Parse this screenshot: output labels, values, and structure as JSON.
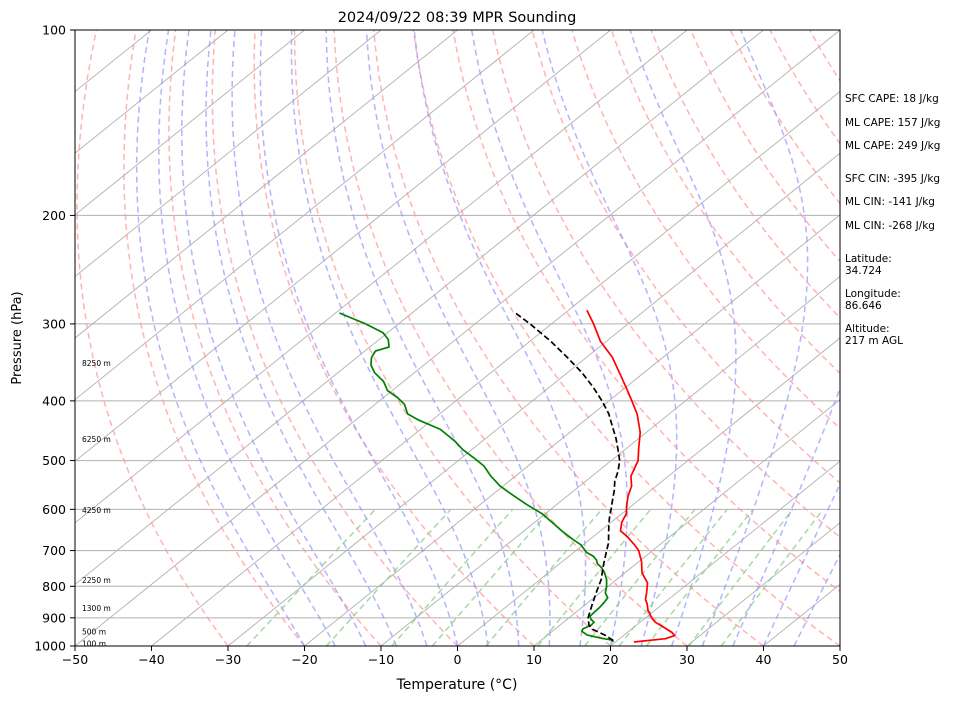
{
  "chart_data": {
    "type": "line",
    "subtype": "skew-t log-p sounding",
    "title": "2024/09/22 08:39 MPR Sounding",
    "xlabel": "Temperature (°C)",
    "ylabel": "Pressure (hPa)",
    "xlim": [
      -50,
      50
    ],
    "ylim": [
      1000,
      100
    ],
    "y_scale": "log",
    "x_ticks": [
      "−50",
      "−40",
      "−30",
      "−20",
      "−10",
      "0",
      "10",
      "20",
      "30",
      "40",
      "50"
    ],
    "x_tick_values": [
      -50,
      -40,
      -30,
      -20,
      -10,
      0,
      10,
      20,
      30,
      40,
      50
    ],
    "y_ticks": [
      "100",
      "200",
      "300",
      "400",
      "500",
      "600",
      "700",
      "800",
      "900",
      "1000"
    ],
    "y_tick_values": [
      100,
      200,
      300,
      400,
      500,
      600,
      700,
      800,
      900,
      1000
    ],
    "grid": true,
    "legend": "none",
    "colors": {
      "temperature": "#ff0000",
      "dewpoint": "#008000",
      "parcel": "#000000",
      "isotherm": "#b0b0b0",
      "dry_adiabat": "#ff9a9a",
      "moist_adiabat": "#9a9aff",
      "mixing_ratio": "#8fcf8f"
    },
    "height_labels": [
      {
        "label": "8250 m",
        "p": 347
      },
      {
        "label": "6250 m",
        "p": 461
      },
      {
        "label": "4250 m",
        "p": 601
      },
      {
        "label": "2250 m",
        "p": 781
      },
      {
        "label": "1300 m",
        "p": 867
      },
      {
        "label": "500 m",
        "p": 948
      },
      {
        "label": "100 m",
        "p": 990
      }
    ],
    "series": [
      {
        "kind": "temperature",
        "points": [
          [
            22.4,
            985
          ],
          [
            26.0,
            973
          ],
          [
            26.7,
            962
          ],
          [
            25.8,
            950
          ],
          [
            24.2,
            935
          ],
          [
            22.0,
            915
          ],
          [
            20.8,
            900
          ],
          [
            19.8,
            885
          ],
          [
            19.1,
            875
          ],
          [
            18.0,
            855
          ],
          [
            17.0,
            840
          ],
          [
            16.1,
            820
          ],
          [
            15.1,
            800
          ],
          [
            14.6,
            790
          ],
          [
            13.4,
            775
          ],
          [
            12.2,
            760
          ],
          [
            10.4,
            730
          ],
          [
            8.2,
            700
          ],
          [
            6.7,
            685
          ],
          [
            4.5,
            665
          ],
          [
            2.6,
            650
          ],
          [
            2.0,
            640
          ],
          [
            1.4,
            630
          ],
          [
            0.6,
            610
          ],
          [
            -0.8,
            590
          ],
          [
            -2.1,
            570
          ],
          [
            -3.2,
            550
          ],
          [
            -4.9,
            530
          ],
          [
            -6.5,
            500
          ],
          [
            -8.2,
            480
          ],
          [
            -10.8,
            450
          ],
          [
            -14.2,
            420
          ],
          [
            -17.0,
            400
          ],
          [
            -20.0,
            380
          ],
          [
            -23.2,
            360
          ],
          [
            -26.6,
            340
          ],
          [
            -30.8,
            320
          ],
          [
            -34.5,
            300
          ],
          [
            -37.6,
            285
          ]
        ]
      },
      {
        "kind": "dewpoint",
        "points": [
          [
            19.7,
            985
          ],
          [
            19.2,
            978
          ],
          [
            17.3,
            970
          ],
          [
            15.2,
            960
          ],
          [
            13.9,
            947
          ],
          [
            13.6,
            938
          ],
          [
            14.1,
            926
          ],
          [
            14.0,
            915
          ],
          [
            13.1,
            905
          ],
          [
            12.5,
            895
          ],
          [
            12.4,
            880
          ],
          [
            12.3,
            865
          ],
          [
            12.1,
            850
          ],
          [
            11.8,
            835
          ],
          [
            10.7,
            820
          ],
          [
            9.8,
            800
          ],
          [
            8.7,
            780
          ],
          [
            7.3,
            760
          ],
          [
            6.0,
            745
          ],
          [
            4.9,
            735
          ],
          [
            4.2,
            725
          ],
          [
            3.2,
            715
          ],
          [
            1.7,
            705
          ],
          [
            -0.3,
            685
          ],
          [
            -2.4,
            670
          ],
          [
            -5.1,
            650
          ],
          [
            -7.7,
            630
          ],
          [
            -10.4,
            610
          ],
          [
            -13.8,
            590
          ],
          [
            -17.1,
            570
          ],
          [
            -20.4,
            550
          ],
          [
            -23.2,
            530
          ],
          [
            -25.8,
            510
          ],
          [
            -28.4,
            495
          ],
          [
            -31.2,
            480
          ],
          [
            -33.6,
            465
          ],
          [
            -37.4,
            445
          ],
          [
            -41.7,
            430
          ],
          [
            -44.2,
            420
          ],
          [
            -46.2,
            405
          ],
          [
            -48.2,
            395
          ],
          [
            -50.6,
            385
          ],
          [
            -52.6,
            372
          ],
          [
            -55.2,
            360
          ],
          [
            -56.9,
            350
          ],
          [
            -58.1,
            340
          ],
          [
            -58.6,
            332
          ],
          [
            -57.5,
            327
          ],
          [
            -58.8,
            318
          ],
          [
            -60.6,
            310
          ],
          [
            -64.3,
            300
          ],
          [
            -69.5,
            288
          ]
        ]
      },
      {
        "kind": "parcel",
        "points": [
          [
            19.5,
            980
          ],
          [
            17.5,
            960
          ],
          [
            15.0,
            940
          ],
          [
            13.8,
            925
          ],
          [
            12.5,
            900
          ],
          [
            11.0,
            860
          ],
          [
            9.5,
            820
          ],
          [
            8.0,
            780
          ],
          [
            6.0,
            740
          ],
          [
            4.0,
            700
          ],
          [
            3.0,
            680
          ],
          [
            1.7,
            660
          ],
          [
            0.4,
            640
          ],
          [
            -0.9,
            620
          ],
          [
            -2.1,
            600
          ],
          [
            -3.4,
            580
          ],
          [
            -4.7,
            560
          ],
          [
            -6.2,
            540
          ],
          [
            -7.4,
            520
          ],
          [
            -8.9,
            500
          ],
          [
            -10.9,
            480
          ],
          [
            -13.0,
            460
          ],
          [
            -15.4,
            440
          ],
          [
            -17.9,
            420
          ],
          [
            -20.9,
            400
          ],
          [
            -24.3,
            380
          ],
          [
            -28.1,
            360
          ],
          [
            -32.5,
            340
          ],
          [
            -37.3,
            320
          ],
          [
            -42.8,
            300
          ],
          [
            -46.8,
            287
          ]
        ]
      }
    ]
  },
  "side_panel": {
    "sfc_cape": "SFC CAPE: 18 J/kg",
    "ml_cape_1": "ML CAPE: 157 J/kg",
    "ml_cape_2": "ML CAPE: 249 J/kg",
    "sfc_cin": "SFC CIN: -395 J/kg",
    "ml_cin_1": "ML CIN: -141 J/kg",
    "ml_cin_2": "ML CIN: -268 J/kg",
    "latitude_label": "Latitude:",
    "latitude_value": "34.724",
    "longitude_label": "Longitude:",
    "longitude_value": "86.646",
    "altitude_label": "Altitude:",
    "altitude_value": "217 m AGL"
  }
}
